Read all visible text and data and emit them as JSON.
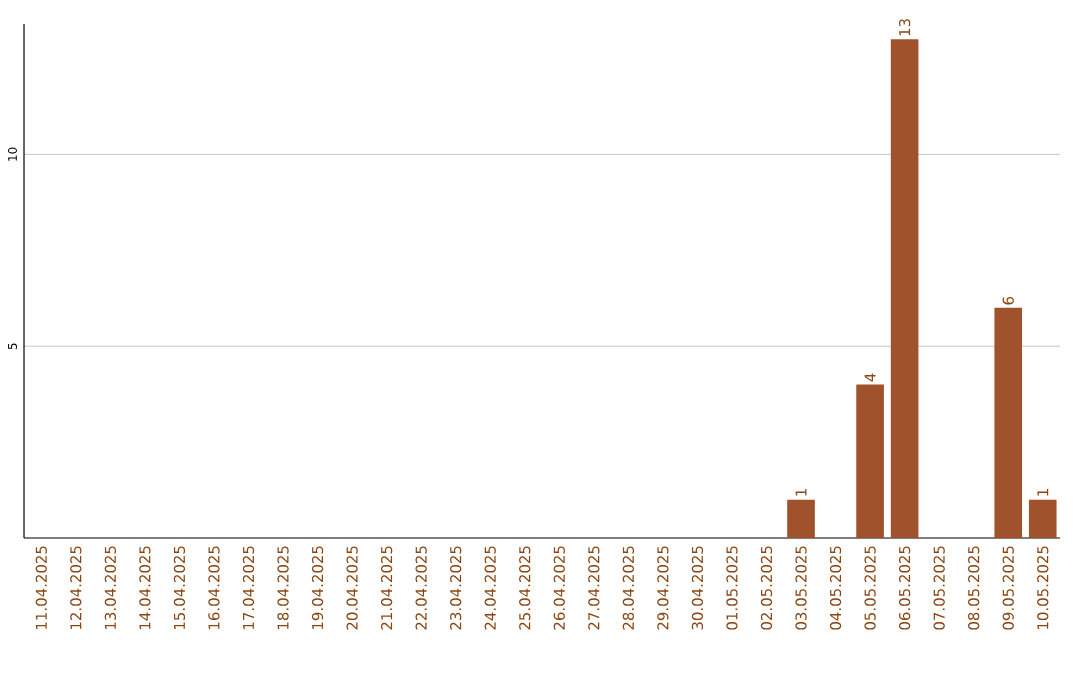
{
  "chart_data": {
    "type": "bar",
    "categories": [
      "11.04.2025",
      "12.04.2025",
      "13.04.2025",
      "14.04.2025",
      "15.04.2025",
      "16.04.2025",
      "17.04.2025",
      "18.04.2025",
      "19.04.2025",
      "20.04.2025",
      "21.04.2025",
      "22.04.2025",
      "23.04.2025",
      "24.04.2025",
      "25.04.2025",
      "26.04.2025",
      "27.04.2025",
      "28.04.2025",
      "29.04.2025",
      "30.04.2025",
      "01.05.2025",
      "02.05.2025",
      "03.05.2025",
      "04.05.2025",
      "05.05.2025",
      "06.05.2025",
      "07.05.2025",
      "08.05.2025",
      "09.05.2025",
      "10.05.2025"
    ],
    "values": [
      0,
      0,
      0,
      0,
      0,
      0,
      0,
      0,
      0,
      0,
      0,
      0,
      0,
      0,
      0,
      0,
      0,
      0,
      0,
      0,
      0,
      0,
      1,
      0,
      4,
      13,
      0,
      0,
      6,
      1
    ],
    "value_labels": [
      null,
      null,
      null,
      null,
      null,
      null,
      null,
      null,
      null,
      null,
      null,
      null,
      null,
      null,
      null,
      null,
      null,
      null,
      null,
      null,
      null,
      null,
      "1",
      null,
      "4",
      "13",
      null,
      null,
      "6",
      "1"
    ],
    "color": "#a0522d",
    "ylim": [
      0,
      13.4
    ],
    "yticks": [
      5,
      10
    ],
    "grid": "y"
  }
}
